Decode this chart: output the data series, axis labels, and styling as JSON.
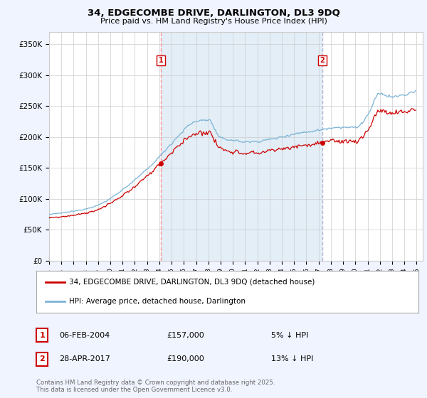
{
  "title_line1": "34, EDGECOMBE DRIVE, DARLINGTON, DL3 9DQ",
  "title_line2": "Price paid vs. HM Land Registry's House Price Index (HPI)",
  "ylabel_ticks": [
    "£0",
    "£50K",
    "£100K",
    "£150K",
    "£200K",
    "£250K",
    "£300K",
    "£350K"
  ],
  "ylim": [
    0,
    370000
  ],
  "xlim_start": 1995.0,
  "xlim_end": 2025.5,
  "sale1_year": 2004,
  "sale1_month": 2,
  "sale1_price": 157000,
  "sale1_label": "1",
  "sale1_text": "06-FEB-2004",
  "sale1_pct": "5% ↓ HPI",
  "sale2_year": 2017,
  "sale2_month": 4,
  "sale2_price": 190000,
  "sale2_label": "2",
  "sale2_text": "28-APR-2017",
  "sale2_pct": "13% ↓ HPI",
  "hpi_color": "#7ab3d4",
  "price_color": "#cc0000",
  "vline1_color": "#ff8888",
  "vline2_color": "#aaaacc",
  "shade_color": "#d8e8f5",
  "background_color": "#f0f4ff",
  "plot_bg": "#ffffff",
  "legend_line1": "34, EDGECOMBE DRIVE, DARLINGTON, DL3 9DQ (detached house)",
  "legend_line2": "HPI: Average price, detached house, Darlington",
  "footnote": "Contains HM Land Registry data © Crown copyright and database right 2025.\nThis data is licensed under the Open Government Licence v3.0."
}
